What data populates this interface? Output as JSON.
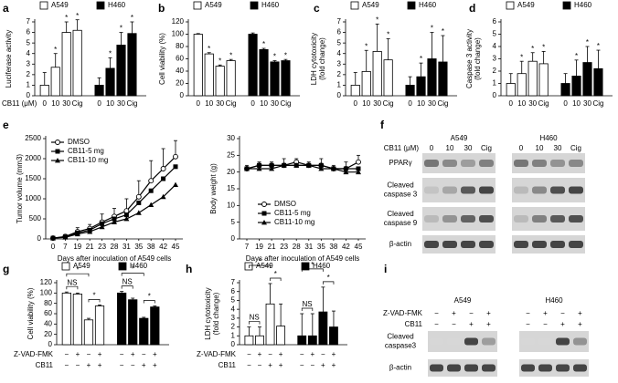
{
  "chart_data": [
    {
      "panel": "a",
      "type": "bar",
      "ylabel": [
        "Luciferase activity"
      ],
      "xlabel": "CB11 (μM)",
      "categories": [
        "0",
        "10",
        "30",
        "Cig"
      ],
      "ylim": [
        0,
        7
      ],
      "yticks": [
        0,
        1,
        2,
        3,
        4,
        5,
        6,
        7
      ],
      "series": [
        {
          "name": "A549",
          "color": "#ffffff",
          "values": [
            1,
            2.7,
            6,
            6.2
          ],
          "errors": [
            1.2,
            1.3,
            1,
            1
          ],
          "annotations": [
            null,
            "*",
            "*",
            "*"
          ]
        },
        {
          "name": "H460",
          "color": "#000000",
          "values": [
            1,
            2.6,
            4.8,
            5.9
          ],
          "errors": [
            0.7,
            1,
            1.2,
            1.1
          ],
          "annotations": [
            null,
            "*",
            "*",
            "*"
          ]
        }
      ]
    },
    {
      "panel": "b",
      "type": "bar",
      "ylabel": [
        "Cell viability (%)"
      ],
      "categories": [
        "0",
        "10",
        "30",
        "Cig"
      ],
      "ylim": [
        0,
        120
      ],
      "yticks": [
        0,
        20,
        40,
        60,
        80,
        100,
        120
      ],
      "series": [
        {
          "name": "A549",
          "color": "#ffffff",
          "values": [
            100,
            68,
            48,
            57
          ],
          "errors": [
            1,
            2,
            2,
            2
          ],
          "annotations": [
            null,
            "*",
            "*",
            "*"
          ]
        },
        {
          "name": "H460",
          "color": "#000000",
          "values": [
            100,
            75,
            55,
            57
          ],
          "errors": [
            2,
            2,
            2,
            2
          ],
          "annotations": [
            null,
            "*",
            "*",
            "*"
          ]
        }
      ]
    },
    {
      "panel": "c",
      "type": "bar",
      "ylabel": [
        "LDH cytotoxicity",
        "(fold change)"
      ],
      "categories": [
        "0",
        "10",
        "30",
        "Cig"
      ],
      "ylim": [
        0,
        7
      ],
      "yticks": [
        0,
        1,
        2,
        3,
        4,
        5,
        6,
        7
      ],
      "series": [
        {
          "name": "A549",
          "color": "#ffffff",
          "values": [
            1,
            2.3,
            4.2,
            3.4
          ],
          "errors": [
            1.2,
            2,
            2.6,
            2
          ],
          "annotations": [
            null,
            "*",
            "*",
            "*"
          ]
        },
        {
          "name": "H460",
          "color": "#000000",
          "values": [
            1,
            1.8,
            3.5,
            3.2
          ],
          "errors": [
            0.8,
            1.3,
            2.5,
            2.5
          ],
          "annotations": [
            null,
            "*",
            "*",
            "*"
          ]
        }
      ]
    },
    {
      "panel": "d",
      "type": "bar",
      "ylabel": [
        "Caspase 3 activity",
        "(fold change)"
      ],
      "categories": [
        "0",
        "10",
        "30",
        "Cig"
      ],
      "ylim": [
        0,
        6
      ],
      "yticks": [
        0,
        1,
        2,
        3,
        4,
        5,
        6
      ],
      "series": [
        {
          "name": "A549",
          "color": "#ffffff",
          "values": [
            1,
            1.8,
            2.8,
            2.6
          ],
          "errors": [
            0.8,
            1,
            0.7,
            1
          ],
          "annotations": [
            null,
            "*",
            "*",
            "*"
          ]
        },
        {
          "name": "H460",
          "color": "#000000",
          "values": [
            1,
            1.6,
            2.7,
            2.2
          ],
          "errors": [
            0.8,
            1.3,
            1.3,
            1.5
          ],
          "annotations": [
            null,
            "*",
            "*",
            "*"
          ]
        }
      ]
    },
    {
      "panel": "e",
      "type": "line",
      "ylabel": [
        "Tumor volume (mm3)"
      ],
      "xlabel": "Days after inoculation of A549 cells",
      "categories": [
        "0",
        "7",
        "19",
        "21",
        "23",
        "28",
        "31",
        "35",
        "38",
        "42",
        "45"
      ],
      "ylim": [
        0,
        2500
      ],
      "yticks": [
        0,
        500,
        1000,
        1500,
        2000,
        2500
      ],
      "legend": "upper left",
      "series": [
        {
          "name": "DMSO",
          "color": "#000000",
          "marker": "circle-open",
          "values": [
            20,
            60,
            180,
            260,
            420,
            560,
            700,
            1050,
            1450,
            1750,
            2050
          ],
          "errors": [
            0,
            50,
            100,
            100,
            200,
            200,
            300,
            400,
            500,
            500,
            400
          ]
        },
        {
          "name": "CB11-5 mg",
          "color": "#000000",
          "marker": "square",
          "values": [
            20,
            50,
            150,
            220,
            380,
            500,
            600,
            900,
            1200,
            1500,
            1800
          ]
        },
        {
          "name": "CB11-10 mg",
          "color": "#000000",
          "marker": "triangle",
          "values": [
            20,
            40,
            120,
            180,
            300,
            420,
            500,
            650,
            850,
            1050,
            1350
          ]
        }
      ]
    },
    {
      "type": "line",
      "ylabel": [
        "Body weight (g)"
      ],
      "xlabel": "Days after inoculation of A549 cells",
      "categories": [
        "7",
        "19",
        "21",
        "23",
        "28",
        "31",
        "35",
        "38",
        "42",
        "45"
      ],
      "ylim": [
        0,
        30
      ],
      "yticks": [
        0,
        5,
        10,
        15,
        20,
        25,
        30
      ],
      "legend": "lower left",
      "series": [
        {
          "name": "DMSO",
          "color": "#000000",
          "marker": "circle-open",
          "values": [
            21,
            22,
            22,
            22,
            23,
            22,
            22,
            21,
            21,
            23
          ],
          "errors": [
            1,
            1,
            1,
            2,
            1,
            1,
            2,
            1,
            2,
            2
          ]
        },
        {
          "name": "CB11-5 mg",
          "color": "#000000",
          "marker": "square",
          "values": [
            21,
            22,
            22,
            22,
            22,
            22,
            22,
            21,
            21,
            21
          ]
        },
        {
          "name": "CB11-10 mg",
          "color": "#000000",
          "marker": "triangle",
          "values": [
            21,
            21,
            21,
            22,
            22,
            22,
            21,
            21,
            20,
            20
          ]
        }
      ]
    },
    {
      "panel": "g",
      "type": "bar",
      "ylabel": [
        "Cell viability (%)"
      ],
      "ylim": [
        0,
        120
      ],
      "yticks": [
        0,
        20,
        40,
        60,
        80,
        100,
        120
      ],
      "condition_names": [
        "Z-VAD-FMK",
        "CB11"
      ],
      "series": [
        {
          "name": "A549",
          "color": "#ffffff",
          "values": [
            100,
            98,
            48,
            75
          ],
          "errors": [
            2,
            2,
            3,
            2
          ],
          "brackets": [
            "*",
            "NS",
            "*"
          ],
          "conditions": [
            [
              "−",
              "+",
              "−",
              "+"
            ],
            [
              "−",
              "−",
              "+",
              "+"
            ]
          ]
        },
        {
          "name": "H460",
          "color": "#000000",
          "values": [
            100,
            87,
            51,
            73
          ],
          "errors": [
            3,
            3,
            2,
            2
          ],
          "brackets": [
            "*",
            "NS",
            "*"
          ],
          "conditions": [
            [
              "−",
              "+",
              "−",
              "+"
            ],
            [
              "−",
              "−",
              "+",
              "+"
            ]
          ]
        }
      ]
    },
    {
      "panel": "h",
      "type": "bar",
      "ylabel": [
        "LDH cytotoxicity",
        "(fold change)"
      ],
      "ylim": [
        0,
        7
      ],
      "yticks": [
        0,
        1,
        2,
        3,
        4,
        5,
        6,
        7
      ],
      "condition_names": [
        "Z-VAD-FMK",
        "CB11"
      ],
      "series": [
        {
          "name": "A549",
          "color": "#ffffff",
          "values": [
            1,
            1,
            4.6,
            2.1
          ],
          "errors": [
            1,
            1,
            2.3,
            2.5
          ],
          "brackets": [
            "*",
            "NS",
            "*"
          ],
          "conditions": [
            [
              "−",
              "+",
              "−",
              "+"
            ],
            [
              "−",
              "−",
              "+",
              "+"
            ]
          ]
        },
        {
          "name": "H460",
          "color": "#000000",
          "values": [
            1,
            1,
            3.7,
            2
          ],
          "errors": [
            2.5,
            2.5,
            2.8,
            1.8
          ],
          "brackets": [
            "*",
            "NS",
            "*"
          ],
          "conditions": [
            [
              "−",
              "+",
              "−",
              "+"
            ],
            [
              "−",
              "−",
              "+",
              "+"
            ]
          ]
        }
      ]
    }
  ],
  "blots": [
    {
      "panel": "f",
      "unit_label": "CB11 (μM)",
      "groups": [
        {
          "name": "A549",
          "lanes": [
            "0",
            "10",
            "30",
            "Cig"
          ]
        },
        {
          "name": "H460",
          "lanes": [
            "0",
            "10",
            "30",
            "Cig"
          ]
        }
      ],
      "rows": [
        [
          "PPARγ"
        ],
        [
          "Cleaved",
          "caspase 3"
        ],
        [
          "Cleaved",
          "caspase 9"
        ],
        [
          "β-actin"
        ]
      ]
    },
    {
      "panel": "i",
      "condition_names": [
        "Z-VAD-FMK",
        "CB11"
      ],
      "groups": [
        {
          "name": "A549",
          "conditions": [
            [
              "−",
              "+",
              "−",
              "+"
            ],
            [
              "−",
              "−",
              "+",
              "+"
            ]
          ]
        },
        {
          "name": "H460",
          "conditions": [
            [
              "−",
              "+",
              "−",
              "+"
            ],
            [
              "−",
              "−",
              "+",
              "+"
            ]
          ]
        }
      ],
      "rows": [
        [
          "Cleaved",
          "caspase3"
        ],
        [
          "β-actin"
        ]
      ]
    }
  ]
}
